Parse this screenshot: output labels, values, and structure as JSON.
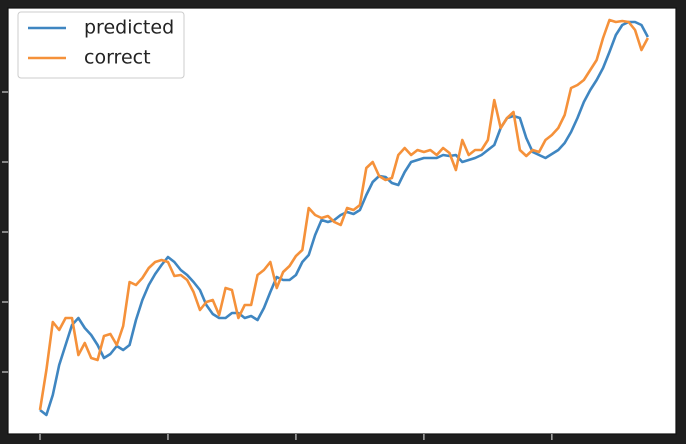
{
  "chart_data": {
    "type": "line",
    "x": [
      0,
      1,
      2,
      3,
      4,
      5,
      6,
      7,
      8,
      9,
      10,
      11,
      12,
      13,
      14,
      15,
      16,
      17,
      18,
      19,
      20,
      21,
      22,
      23,
      24,
      25,
      26,
      27,
      28,
      29,
      30,
      31,
      32,
      33,
      34,
      35,
      36,
      37,
      38,
      39,
      40,
      41,
      42,
      43,
      44,
      45,
      46,
      47,
      48,
      49,
      50,
      51,
      52,
      53,
      54,
      55,
      56,
      57,
      58,
      59,
      60,
      61,
      62,
      63,
      64,
      65,
      66,
      67,
      68,
      69,
      70,
      71,
      72,
      73,
      74,
      75,
      76,
      77,
      78,
      79,
      80,
      81,
      82,
      83,
      84,
      85,
      86,
      87,
      88,
      89,
      90,
      91,
      92,
      93,
      94,
      95
    ],
    "series": [
      {
        "name": "predicted",
        "color": "#3f86c1",
        "values": [
          24,
          19,
          39,
          69,
          89,
          109,
          116,
          106,
          99,
          89,
          76,
          80,
          88,
          84,
          89,
          114,
          134,
          149,
          160,
          169,
          177,
          172,
          164,
          159,
          152,
          144,
          129,
          120,
          116,
          116,
          121,
          121,
          116,
          118,
          114,
          126,
          142,
          157,
          154,
          154,
          159,
          172,
          179,
          199,
          214,
          212,
          214,
          219,
          222,
          220,
          224,
          239,
          252,
          258,
          257,
          251,
          249,
          262,
          272,
          274,
          276,
          276,
          276,
          279,
          278,
          279,
          272,
          274,
          276,
          279,
          284,
          289,
          306,
          316,
          318,
          316,
          296,
          282,
          279,
          276,
          280,
          284,
          291,
          302,
          316,
          332,
          344,
          354,
          366,
          382,
          399,
          409,
          412,
          412,
          409,
          397
        ]
      },
      {
        "name": "correct",
        "color": "#f5913a",
        "values": [
          24,
          64,
          112,
          104,
          116,
          116,
          79,
          91,
          76,
          74,
          98,
          100,
          89,
          108,
          152,
          149,
          156,
          166,
          172,
          174,
          172,
          158,
          159,
          154,
          142,
          124,
          132,
          134,
          119,
          146,
          144,
          116,
          129,
          129,
          159,
          164,
          172,
          146,
          162,
          168,
          178,
          184,
          226,
          219,
          216,
          218,
          212,
          209,
          226,
          224,
          229,
          266,
          272,
          258,
          254,
          256,
          279,
          286,
          279,
          284,
          282,
          284,
          279,
          286,
          281,
          264,
          294,
          279,
          284,
          284,
          294,
          334,
          306,
          316,
          322,
          284,
          278,
          284,
          282,
          294,
          299,
          306,
          319,
          346,
          349,
          354,
          364,
          374,
          396,
          414,
          412,
          413,
          412,
          404,
          384,
          396
        ]
      }
    ],
    "xlim": [
      -5,
      99.4
    ],
    "xticks": [
      0,
      20,
      40,
      60,
      80
    ],
    "ylim": [
      0,
      426
    ],
    "yticks": [
      62,
      132,
      202,
      272,
      342
    ],
    "legend": "upper left"
  }
}
